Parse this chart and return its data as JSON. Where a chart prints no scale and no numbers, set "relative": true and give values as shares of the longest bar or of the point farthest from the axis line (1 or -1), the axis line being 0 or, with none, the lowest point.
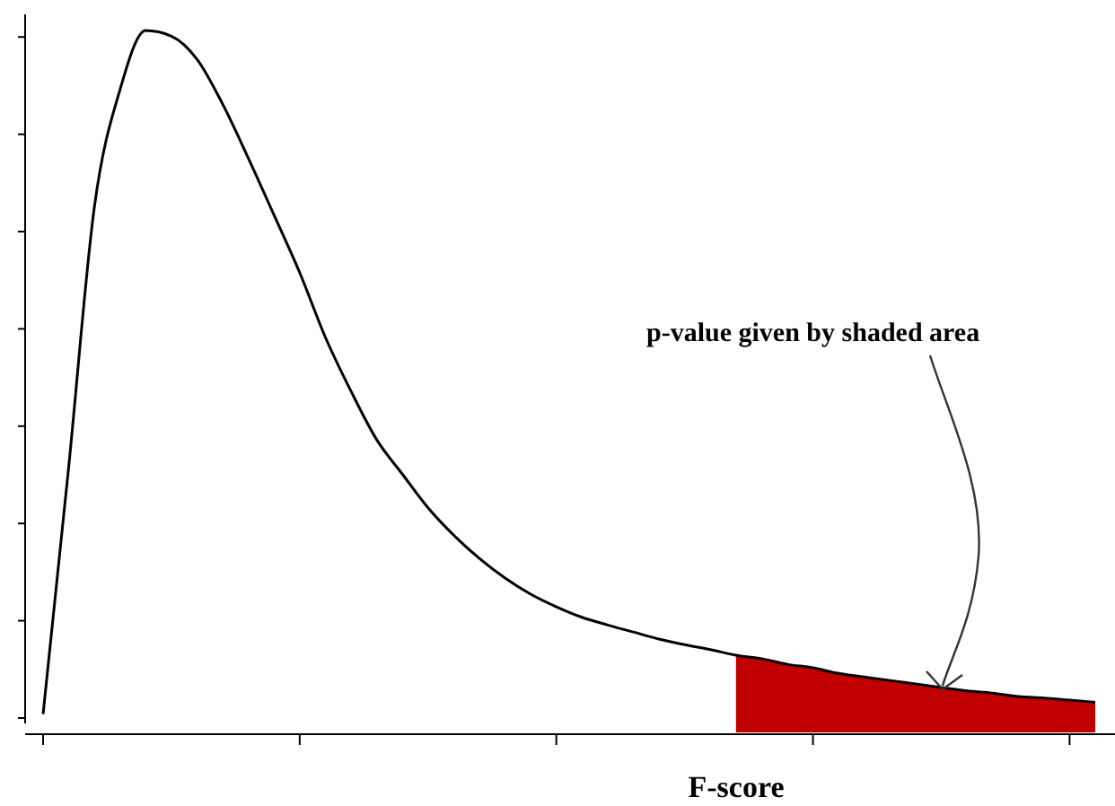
{
  "chart_data": {
    "type": "line",
    "relative": true,
    "xlabel": "F-score",
    "annotations": [
      "p-value given by shaded area"
    ],
    "categories": [
      null,
      null,
      null,
      null,
      null,
      null,
      null,
      null,
      null,
      null,
      null,
      null,
      null,
      null,
      null,
      null,
      null,
      null,
      null,
      null,
      null,
      null,
      null,
      null,
      null,
      null,
      null,
      null,
      null,
      null,
      null,
      null,
      null,
      null,
      null,
      null,
      null,
      null,
      null,
      null,
      null,
      null
    ],
    "series": [
      {
        "color": "#000000",
        "values": [
          0.026,
          0.379,
          0.749,
          0.916,
          1,
          0.992,
          0.959,
          0.895,
          0.818,
          0.737,
          0.655,
          0.563,
          0.486,
          0.417,
          0.368,
          0.32,
          0.281,
          0.248,
          0.22,
          0.197,
          0.179,
          0.164,
          0.153,
          0.143,
          0.133,
          0.125,
          0.118,
          0.11,
          0.105,
          0.097,
          0.092,
          0.084,
          0.079,
          0.074,
          0.069,
          0.064,
          0.059,
          0.056,
          0.051,
          0.049,
          0.046,
          0.043
        ]
      },
      {
        "type": "area",
        "color": "#c00000",
        "values": [
          null,
          null,
          null,
          null,
          null,
          null,
          null,
          null,
          null,
          null,
          null,
          null,
          null,
          null,
          null,
          null,
          null,
          null,
          null,
          null,
          null,
          null,
          null,
          null,
          null,
          null,
          null,
          0.11,
          0.105,
          0.097,
          0.092,
          0.084,
          0.079,
          0.074,
          0.069,
          0.064,
          0.059,
          0.056,
          0.051,
          0.049,
          0.046,
          0.043
        ]
      }
    ]
  }
}
